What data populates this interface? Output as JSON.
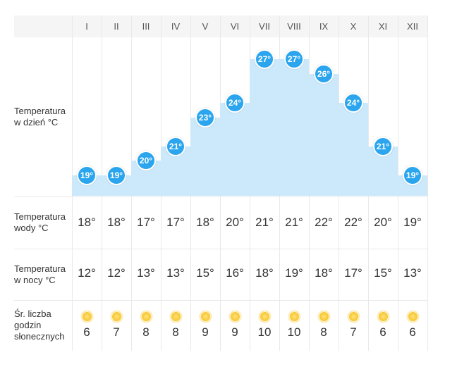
{
  "months": [
    "I",
    "II",
    "III",
    "IV",
    "V",
    "VI",
    "VII",
    "VIII",
    "IX",
    "X",
    "XI",
    "XII"
  ],
  "rows": {
    "day_temp": {
      "label": "Temperatura w dzień °C",
      "values": [
        "19°",
        "19°",
        "20°",
        "21°",
        "23°",
        "24°",
        "27°",
        "27°",
        "26°",
        "24°",
        "21°",
        "19°"
      ],
      "levels": [
        19,
        19,
        20,
        21,
        23,
        24,
        27,
        27,
        26,
        24,
        21,
        19
      ]
    },
    "water_temp": {
      "label": "Temperatura wody °C",
      "values": [
        "18°",
        "18°",
        "17°",
        "17°",
        "18°",
        "20°",
        "21°",
        "21°",
        "22°",
        "22°",
        "20°",
        "19°"
      ]
    },
    "night_temp": {
      "label": "Temperatura w nocy °C",
      "values": [
        "12°",
        "12°",
        "13°",
        "13°",
        "15°",
        "16°",
        "18°",
        "19°",
        "18°",
        "17°",
        "15°",
        "13°"
      ]
    },
    "sun_hours": {
      "label": "Śr. liczba godzin słonecznych",
      "icon": "sun-icon",
      "values": [
        "6",
        "7",
        "8",
        "8",
        "9",
        "9",
        "10",
        "10",
        "8",
        "7",
        "6",
        "6"
      ]
    }
  },
  "colors": {
    "bar": "#cce8fb",
    "badge": "#2aa5ee",
    "header_bg": "#f5f5f5",
    "grid": "#e9e9e9"
  }
}
